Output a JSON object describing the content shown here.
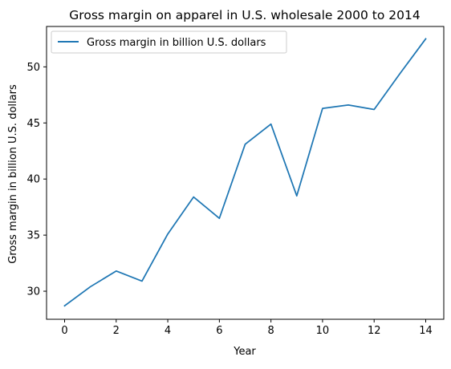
{
  "chart_data": {
    "type": "line",
    "title": "Gross margin on apparel in U.S. wholesale 2000 to 2014",
    "xlabel": "Year",
    "ylabel": "Gross margin in billion U.S. dollars",
    "xlim": [
      -0.7,
      14.7
    ],
    "ylim": [
      27.5,
      53.6
    ],
    "x_ticks": [
      0,
      2,
      4,
      6,
      8,
      10,
      12,
      14
    ],
    "y_ticks": [
      30,
      35,
      40,
      45,
      50
    ],
    "grid": false,
    "legend_position": "upper-left",
    "series": [
      {
        "name": "Gross margin in billion U.S. dollars",
        "color": "#1f77b4",
        "x": [
          0,
          1,
          2,
          3,
          4,
          5,
          6,
          7,
          8,
          9,
          10,
          11,
          12,
          13,
          14
        ],
        "y": [
          28.7,
          30.4,
          31.8,
          30.9,
          35.1,
          38.4,
          36.5,
          43.1,
          44.9,
          38.5,
          46.3,
          46.6,
          46.2,
          49.4,
          52.5
        ]
      }
    ]
  }
}
